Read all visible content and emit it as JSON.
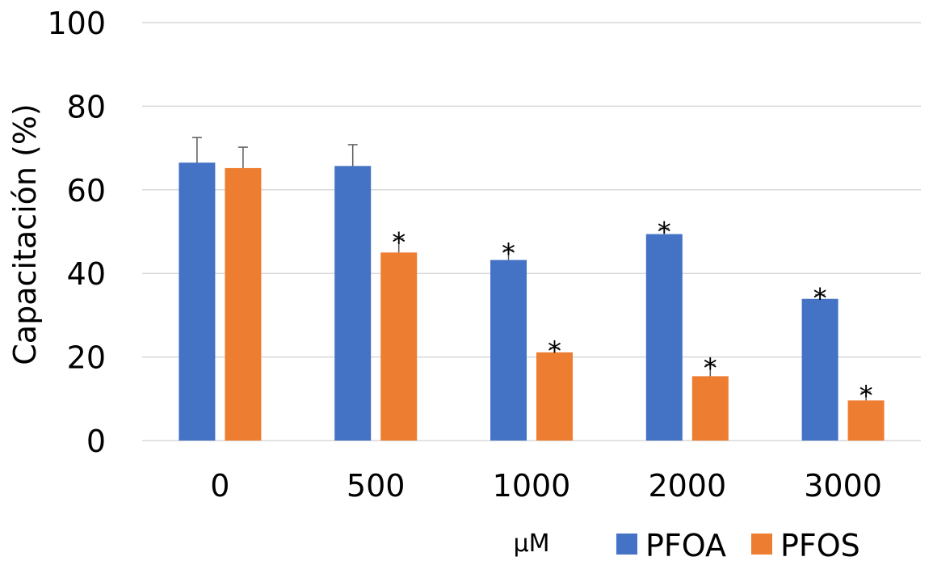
{
  "chart_data": {
    "type": "bar",
    "ylabel": "Capacitación (%)",
    "xunit": "μM",
    "ylim": [
      0,
      100
    ],
    "yticks": [
      0,
      20,
      40,
      60,
      80,
      100
    ],
    "categories": [
      "0",
      "500",
      "1000",
      "2000",
      "3000"
    ],
    "grid": true,
    "legend_position": "bottom",
    "series": [
      {
        "name": "PFOA",
        "color": "#4472C4",
        "values": [
          66.5,
          65.7,
          43.2,
          49.4,
          33.9
        ],
        "errors": [
          6.0,
          5.1,
          2.4,
          1.4,
          1.0
        ],
        "significance": [
          "",
          "",
          "*",
          "*",
          "*"
        ]
      },
      {
        "name": "PFOS",
        "color": "#ED7D31",
        "values": [
          65.2,
          45.0,
          21.1,
          15.4,
          9.6
        ],
        "errors": [
          5.0,
          3.3,
          1.1,
          2.8,
          2.0
        ],
        "significance": [
          "",
          "*",
          "*",
          "*",
          "*"
        ]
      }
    ]
  }
}
